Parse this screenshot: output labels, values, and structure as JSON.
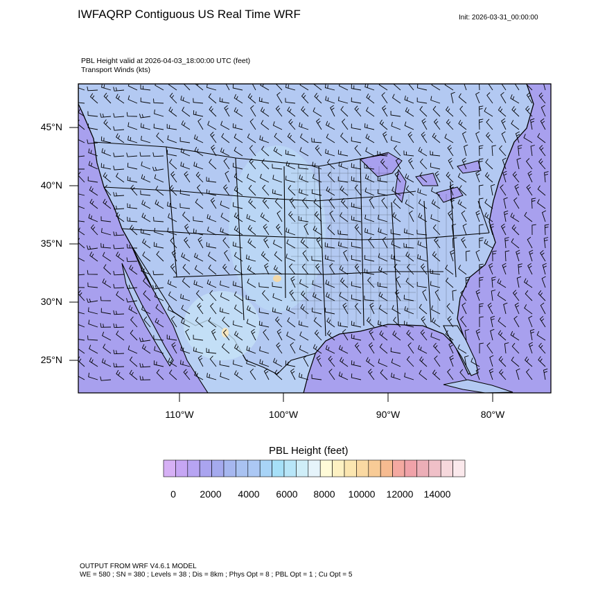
{
  "header": {
    "title": "IWFAQRP Contiguous US Real Time WRF",
    "init": "Init: 2026-03-31_00:00:00",
    "subtitle_line1": "PBL Height valid at 2026-04-03_18:00:00 UTC   (feet)",
    "subtitle_line2": "Transport Winds   (kts)"
  },
  "map": {
    "lat_labels": [
      "45°N",
      "40°N",
      "35°N",
      "30°N",
      "25°N"
    ],
    "lon_labels": [
      "110°W",
      "100°W",
      "90°W",
      "80°W"
    ],
    "ocean_color": "#a8a0ee",
    "land_color": "#b3c9f2",
    "plains_color": "#bcdaf5",
    "hot_spot_color": "#f3d9a8",
    "boundary_color": "#000000"
  },
  "colorbar": {
    "title": "PBL Height  (feet)",
    "labels": [
      "0",
      "2000",
      "4000",
      "6000",
      "8000",
      "10000",
      "12000",
      "14000"
    ],
    "colors": [
      "#d6b0f5",
      "#c6a6f4",
      "#b7a4f2",
      "#aaa4ef",
      "#a5aaee",
      "#a6b7ef",
      "#a9c2f1",
      "#acc8f4",
      "#a8d4f7",
      "#a6e0f8",
      "#b8e6f8",
      "#cfeef8",
      "#e6f4fb",
      "#fffbd8",
      "#fdf1c2",
      "#fbe6b0",
      "#fad9a2",
      "#f8cb96",
      "#f6bb90",
      "#f4a9a1",
      "#f0a2a9",
      "#ecaeb7",
      "#f0c0c8",
      "#f6d8dc",
      "#fbe9ec"
    ]
  },
  "footer": {
    "line1": "OUTPUT FROM WRF V4.6.1 MODEL",
    "line2": "WE = 580 ; SN = 380 ; Levels = 38 ; Dis = 8km ; Phys Opt = 8 ; PBL Opt = 1 ; Cu Opt = 5"
  }
}
